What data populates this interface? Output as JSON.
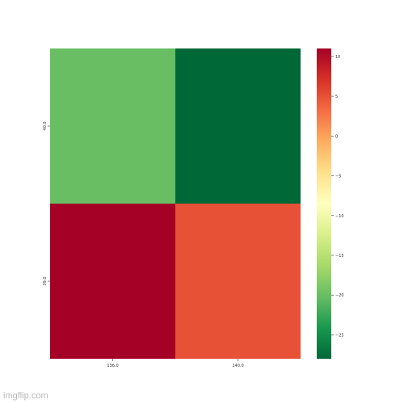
{
  "chart_data": {
    "type": "heatmap",
    "x_categories": [
      "136.0",
      "140.0"
    ],
    "y_categories": [
      "40.0",
      "39.0"
    ],
    "values": [
      [
        -20,
        -28
      ],
      [
        11,
        5
      ]
    ],
    "colorbar": {
      "min": -28,
      "max": 11,
      "ticks": [
        "10",
        "5",
        "0",
        "−5",
        "−10",
        "−15",
        "−20",
        "−25"
      ],
      "tick_values": [
        10,
        5,
        0,
        -5,
        -10,
        -15,
        -20,
        -25
      ],
      "colormap": "RdYlGn_r",
      "colors": [
        "#006837",
        "#1a9850",
        "#66bd63",
        "#a6d96a",
        "#d9ef8b",
        "#ffffbf",
        "#fee08b",
        "#fdae61",
        "#f46d43",
        "#d73027",
        "#a50026"
      ]
    },
    "title": "",
    "xlabel": "",
    "ylabel": ""
  },
  "watermark": "imgflip.com"
}
